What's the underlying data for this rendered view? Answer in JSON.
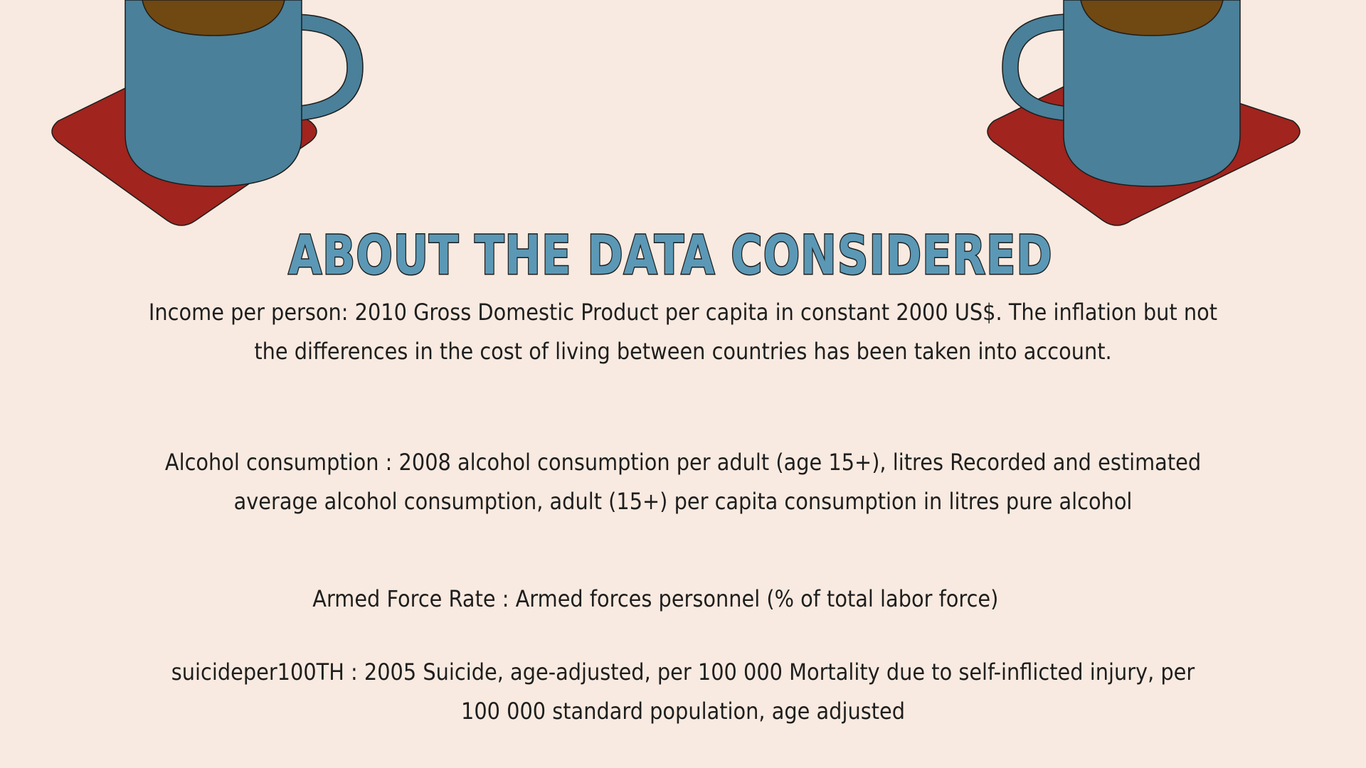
{
  "title": "ABOUT THE DATA CONSIDERED",
  "paragraphs": {
    "income_line1": "Income per person: 2010 Gross Domestic Product per capita in constant 2000 US$. The inflation but not",
    "income_line2": "the differences in the cost of living between countries has been taken into account.",
    "alcohol_line1": "Alcohol consumption : 2008 alcohol consumption per adult (age 15+), litres Recorded and estimated",
    "alcohol_line2": "average alcohol consumption, adult (15+) per capita consumption in litres pure alcohol",
    "armed_line1": "Armed Force Rate : Armed forces personnel (% of total labor force)",
    "suicide_line1": "suicideper100TH : 2005 Suicide, age-adjusted, per 100 000 Mortality due to self-inflicted injury, per",
    "suicide_line2": "100 000 standard population, age adjusted"
  },
  "colors": {
    "background": "#f8eae0",
    "mug": "#4a8099",
    "coaster": "#a1241e",
    "coffee": "#704812",
    "title_fill": "#5b98b5",
    "text": "#1e1e1e"
  },
  "icons": {
    "left": "coffee-mug-on-coaster-icon",
    "right": "coffee-mug-on-coaster-icon"
  }
}
